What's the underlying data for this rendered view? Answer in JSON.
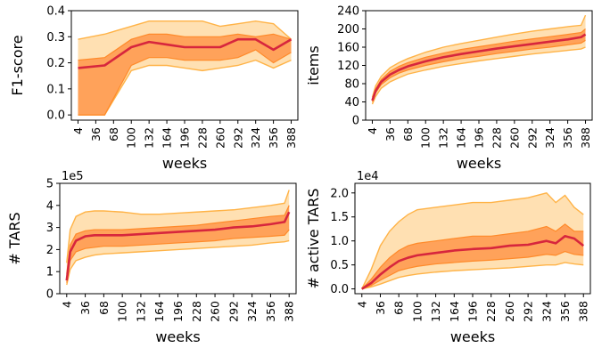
{
  "colors": {
    "outer_band": "#ffe0b2",
    "outer_edge": "#ffb347",
    "inner_band": "#ffa25a",
    "inner_edge": "#ff8a2a",
    "median": "#d7263d"
  },
  "chart_data": [
    {
      "type": "area",
      "ylabel": "F1-score",
      "xlabel": "weeks",
      "sci_label": "",
      "x_ticks": [
        "4",
        "36",
        "68",
        "100",
        "132",
        "164",
        "196",
        "228",
        "260",
        "292",
        "324",
        "356",
        "388"
      ],
      "xlim": [
        -8,
        400
      ],
      "ylim": [
        -0.02,
        0.4
      ],
      "y_ticks": [
        "0.0",
        "0.1",
        "0.2",
        "0.3",
        "0.4"
      ],
      "y_tick_values": [
        0,
        0.1,
        0.2,
        0.3,
        0.4
      ],
      "x": [
        4,
        52,
        100,
        132,
        164,
        196,
        228,
        260,
        292,
        324,
        356,
        388
      ],
      "series": [
        {
          "role": "outer_upper",
          "values": [
            0.29,
            0.31,
            0.34,
            0.36,
            0.36,
            0.36,
            0.36,
            0.34,
            0.35,
            0.36,
            0.35,
            0.29
          ]
        },
        {
          "role": "inner_upper",
          "values": [
            0.21,
            0.22,
            0.29,
            0.31,
            0.31,
            0.3,
            0.3,
            0.3,
            0.31,
            0.3,
            0.31,
            0.29
          ]
        },
        {
          "role": "median",
          "values": [
            0.18,
            0.19,
            0.26,
            0.28,
            0.27,
            0.26,
            0.26,
            0.26,
            0.29,
            0.29,
            0.25,
            0.29
          ]
        },
        {
          "role": "inner_lower",
          "values": [
            0.0,
            0.0,
            0.19,
            0.22,
            0.22,
            0.21,
            0.21,
            0.21,
            0.22,
            0.25,
            0.2,
            0.24
          ]
        },
        {
          "role": "outer_lower",
          "values": [
            0.0,
            0.0,
            0.17,
            0.19,
            0.19,
            0.18,
            0.17,
            0.18,
            0.19,
            0.21,
            0.18,
            0.21
          ]
        }
      ]
    },
    {
      "type": "area",
      "ylabel": "items",
      "xlabel": "weeks",
      "sci_label": "",
      "x_ticks": [
        "4",
        "36",
        "68",
        "100",
        "132",
        "164",
        "196",
        "228",
        "260",
        "292",
        "324",
        "356",
        "388"
      ],
      "xlim": [
        -8,
        400
      ],
      "ylim": [
        0,
        240
      ],
      "y_ticks": [
        "0",
        "40",
        "80",
        "120",
        "160",
        "200",
        "240"
      ],
      "y_tick_values": [
        0,
        40,
        80,
        120,
        160,
        200,
        240
      ],
      "x": [
        4,
        10,
        20,
        36,
        52,
        68,
        100,
        132,
        164,
        196,
        228,
        260,
        292,
        324,
        356,
        380,
        388
      ],
      "series": [
        {
          "role": "outer_upper",
          "values": [
            50,
            75,
            96,
            115,
            126,
            135,
            149,
            160,
            168,
            175,
            182,
            189,
            195,
            200,
            205,
            208,
            230
          ]
        },
        {
          "role": "inner_upper",
          "values": [
            46,
            68,
            89,
            107,
            118,
            126,
            138,
            147,
            155,
            161,
            167,
            173,
            178,
            183,
            188,
            192,
            200
          ]
        },
        {
          "role": "median",
          "values": [
            43,
            64,
            84,
            100,
            110,
            118,
            129,
            138,
            145,
            151,
            157,
            162,
            167,
            172,
            177,
            182,
            188
          ]
        },
        {
          "role": "inner_lower",
          "values": [
            40,
            60,
            78,
            93,
            103,
            110,
            120,
            128,
            135,
            140,
            146,
            151,
            156,
            160,
            165,
            169,
            175
          ]
        },
        {
          "role": "outer_lower",
          "values": [
            35,
            52,
            70,
            84,
            93,
            101,
            110,
            118,
            124,
            130,
            135,
            140,
            145,
            149,
            153,
            156,
            160
          ]
        }
      ]
    },
    {
      "type": "area",
      "ylabel": "# TARS",
      "xlabel": "weeks",
      "sci_label": "1e5",
      "x_ticks": [
        "4",
        "36",
        "68",
        "100",
        "132",
        "164",
        "196",
        "228",
        "260",
        "292",
        "324",
        "356",
        "388"
      ],
      "xlim": [
        -8,
        400
      ],
      "ylim": [
        0,
        5
      ],
      "y_ticks": [
        "0",
        "1",
        "2",
        "3",
        "4",
        "5"
      ],
      "y_tick_values": [
        0,
        1,
        2,
        3,
        4,
        5
      ],
      "x": [
        4,
        10,
        20,
        36,
        52,
        68,
        100,
        132,
        164,
        196,
        228,
        260,
        292,
        324,
        356,
        380,
        388
      ],
      "series": [
        {
          "role": "outer_upper",
          "values": [
            1.4,
            2.9,
            3.5,
            3.7,
            3.75,
            3.75,
            3.7,
            3.6,
            3.6,
            3.65,
            3.7,
            3.75,
            3.8,
            3.9,
            4.0,
            4.1,
            4.7
          ]
        },
        {
          "role": "inner_upper",
          "values": [
            0.9,
            2.2,
            2.7,
            2.85,
            2.9,
            2.9,
            2.9,
            2.95,
            3.0,
            3.05,
            3.1,
            3.2,
            3.3,
            3.4,
            3.5,
            3.55,
            4.0
          ]
        },
        {
          "role": "median",
          "values": [
            0.6,
            1.9,
            2.4,
            2.6,
            2.65,
            2.65,
            2.65,
            2.7,
            2.75,
            2.8,
            2.85,
            2.9,
            3.0,
            3.05,
            3.15,
            3.25,
            3.7
          ]
        },
        {
          "role": "inner_lower",
          "values": [
            0.5,
            1.5,
            1.9,
            2.05,
            2.1,
            2.15,
            2.15,
            2.2,
            2.25,
            2.3,
            2.35,
            2.4,
            2.5,
            2.55,
            2.6,
            2.65,
            2.9
          ]
        },
        {
          "role": "outer_lower",
          "values": [
            0.4,
            1.1,
            1.5,
            1.65,
            1.75,
            1.8,
            1.85,
            1.9,
            1.95,
            2.0,
            2.05,
            2.1,
            2.15,
            2.2,
            2.3,
            2.35,
            2.4
          ]
        }
      ]
    },
    {
      "type": "area",
      "ylabel": "# active TARS",
      "xlabel": "weeks",
      "sci_label": "1e4",
      "x_ticks": [
        "4",
        "36",
        "68",
        "100",
        "132",
        "164",
        "196",
        "228",
        "260",
        "292",
        "324",
        "356",
        "388"
      ],
      "xlim": [
        -8,
        400
      ],
      "ylim": [
        -0.1,
        2.2
      ],
      "y_ticks": [
        "0.0",
        "0.5",
        "1.0",
        "1.5",
        "2.0"
      ],
      "y_tick_values": [
        0,
        0.5,
        1.0,
        1.5,
        2.0
      ],
      "x": [
        4,
        20,
        36,
        52,
        68,
        84,
        100,
        132,
        164,
        196,
        228,
        260,
        292,
        324,
        340,
        356,
        372,
        388
      ],
      "series": [
        {
          "role": "outer_upper",
          "values": [
            0.0,
            0.4,
            0.9,
            1.2,
            1.4,
            1.55,
            1.65,
            1.7,
            1.75,
            1.8,
            1.8,
            1.85,
            1.9,
            2.0,
            1.8,
            1.95,
            1.7,
            1.55
          ]
        },
        {
          "role": "inner_upper",
          "values": [
            0.0,
            0.2,
            0.45,
            0.65,
            0.8,
            0.9,
            0.95,
            1.0,
            1.05,
            1.1,
            1.1,
            1.15,
            1.2,
            1.3,
            1.2,
            1.35,
            1.2,
            1.2
          ]
        },
        {
          "role": "median",
          "values": [
            0.0,
            0.12,
            0.3,
            0.45,
            0.58,
            0.65,
            0.7,
            0.75,
            0.8,
            0.83,
            0.85,
            0.9,
            0.92,
            1.0,
            0.95,
            1.1,
            1.05,
            0.9
          ]
        },
        {
          "role": "inner_lower",
          "values": [
            0.0,
            0.07,
            0.18,
            0.28,
            0.38,
            0.43,
            0.47,
            0.52,
            0.55,
            0.58,
            0.6,
            0.63,
            0.66,
            0.72,
            0.7,
            0.78,
            0.72,
            0.7
          ]
        },
        {
          "role": "outer_lower",
          "values": [
            0.0,
            0.04,
            0.1,
            0.17,
            0.24,
            0.28,
            0.31,
            0.35,
            0.38,
            0.4,
            0.42,
            0.44,
            0.47,
            0.5,
            0.5,
            0.55,
            0.52,
            0.5
          ]
        }
      ]
    }
  ]
}
